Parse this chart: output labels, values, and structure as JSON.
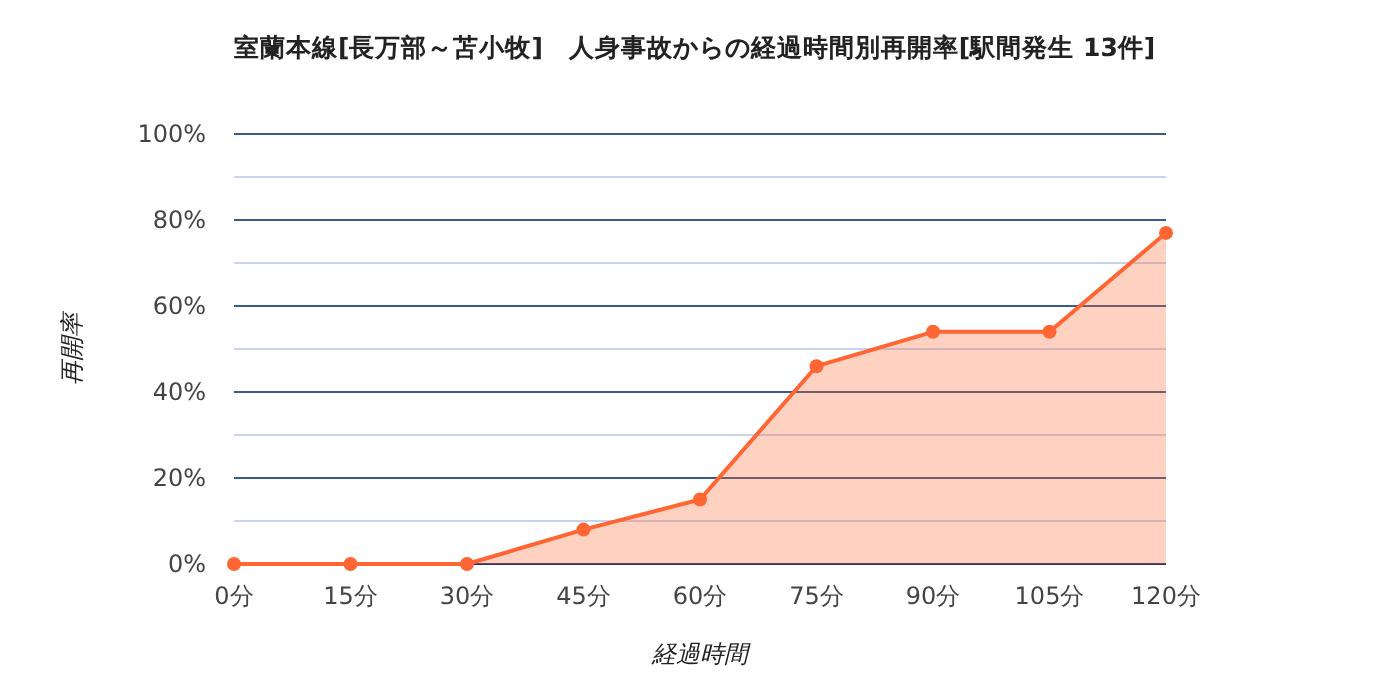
{
  "chart_data": {
    "type": "area",
    "title": "室蘭本線[長万部～苫小牧]　人身事故からの経過時間別再開率[駅間発生 13件]",
    "xlabel": "経過時間",
    "ylabel": "再開率",
    "categories": [
      "0分",
      "15分",
      "30分",
      "45分",
      "60分",
      "75分",
      "90分",
      "105分",
      "120分"
    ],
    "series": [
      {
        "color": "#ff6633",
        "values": [
          0,
          0,
          0,
          8,
          15,
          46,
          54,
          54,
          77
        ]
      }
    ],
    "ylim": [
      0,
      100
    ],
    "yticks": [
      {
        "value": 0,
        "label": "0%"
      },
      {
        "value": 10,
        "label": null
      },
      {
        "value": 20,
        "label": "20%"
      },
      {
        "value": 30,
        "label": null
      },
      {
        "value": 40,
        "label": "40%"
      },
      {
        "value": 50,
        "label": null
      },
      {
        "value": 60,
        "label": "60%"
      },
      {
        "value": 70,
        "label": null
      },
      {
        "value": 80,
        "label": "80%"
      },
      {
        "value": 90,
        "label": null
      },
      {
        "value": 100,
        "label": "100%"
      }
    ],
    "grid": "y",
    "marker": "circle",
    "line_style": "solid"
  }
}
